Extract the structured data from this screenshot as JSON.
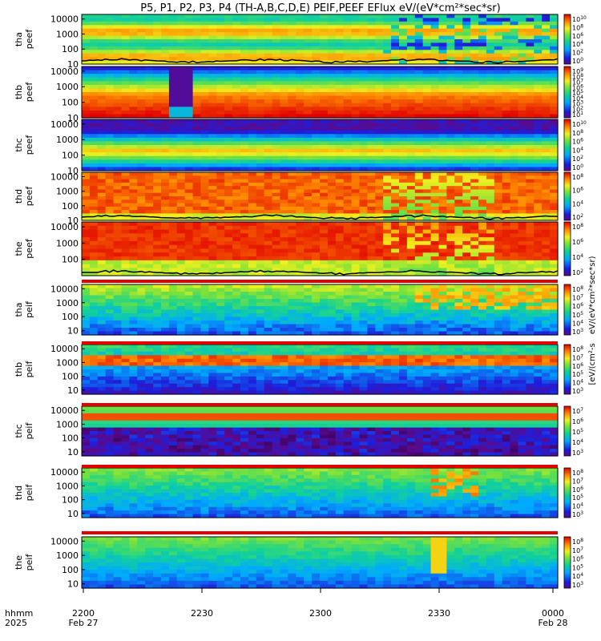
{
  "title": "P5, P1, P2, P3, P4 (TH-A,B,C,D,E) PEIF,PEEF EFlux eV/(eV*cm²*sec*sr)",
  "colorbar_units_top": "eV/(eV*cm²*sec*sr)",
  "colorbar_units_bottom": "[eV/(cm²-s",
  "time_axis": {
    "row1_label": "hhmm",
    "row2_label": "2025",
    "ticks": [
      "2200",
      "2230",
      "2300",
      "2330",
      "0000"
    ],
    "dates": [
      "Feb 27",
      "",
      "",
      "",
      "Feb 28"
    ]
  },
  "chart_data": [
    {
      "type": "heatmap",
      "probe": "tha",
      "product": "peef",
      "panel_label": [
        "tha",
        "peef"
      ],
      "xlim": [
        "22:00",
        "00:00"
      ],
      "ylim": [
        10,
        20000
      ],
      "yscale": "log",
      "yticks": [
        "10",
        "100",
        "1000",
        "10000"
      ],
      "colorbar_exponents": [
        10,
        8,
        6,
        4,
        2,
        0
      ],
      "pattern": "yellow-green mid energies, red bands near 1000 eV and 100 eV; many short spikes after 23:20",
      "has_overlay_line": true
    },
    {
      "type": "heatmap",
      "probe": "thb",
      "product": "peef",
      "panel_label": [
        "thb",
        "peef"
      ],
      "xlim": [
        "22:00",
        "00:00"
      ],
      "ylim": [
        10,
        20000
      ],
      "yscale": "log",
      "yticks": [
        "10",
        "100",
        "1000",
        "10000"
      ],
      "colorbar_exponents": [
        9,
        8,
        7,
        6,
        5,
        4,
        3,
        2,
        1
      ],
      "pattern": "red below 100 eV grading to blue above 1000 eV; data gap near 22:20",
      "has_overlay_line": false
    },
    {
      "type": "heatmap",
      "probe": "thc",
      "product": "peef",
      "panel_label": [
        "thc",
        "peef"
      ],
      "xlim": [
        "22:00",
        "00:00"
      ],
      "ylim": [
        10,
        20000
      ],
      "yscale": "log",
      "yticks": [
        "10",
        "100",
        "1000",
        "10000"
      ],
      "colorbar_exponents": [
        10,
        8,
        6,
        4,
        2,
        0
      ],
      "pattern": "green-yellow band near 100 eV, purple/black above",
      "has_overlay_line": false
    },
    {
      "type": "heatmap",
      "probe": "thd",
      "product": "peef",
      "panel_label": [
        "thd",
        "peef"
      ],
      "xlim": [
        "22:00",
        "00:00"
      ],
      "ylim": [
        10,
        20000
      ],
      "yscale": "log",
      "yticks": [
        "10",
        "100",
        "1000",
        "10000"
      ],
      "colorbar_exponents": [
        8,
        6,
        4,
        2
      ],
      "pattern": "red/orange across mid energies; vertical green dropouts 23:20-23:45",
      "has_overlay_line": true
    },
    {
      "type": "heatmap",
      "probe": "the",
      "product": "peef",
      "panel_label": [
        "the",
        "peef"
      ],
      "xlim": [
        "22:00",
        "00:00"
      ],
      "ylim": [
        10,
        20000
      ],
      "yscale": "log",
      "yticks": [
        "100",
        "1000",
        "10000"
      ],
      "colorbar_exponents": [
        8,
        6,
        4,
        2
      ],
      "pattern": "red dominant with green lower band; vertical dropouts 23:20-23:45",
      "has_overlay_line": true
    },
    {
      "type": "heatmap",
      "probe": "tha",
      "product": "peif",
      "panel_label": [
        "tha",
        "peif"
      ],
      "xlim": [
        "22:00",
        "00:00"
      ],
      "ylim": [
        5,
        20000
      ],
      "yscale": "log",
      "yticks": [
        "10",
        "100",
        "1000",
        "10000"
      ],
      "colorbar_exponents": [
        8,
        7,
        6,
        5,
        4,
        3
      ],
      "pattern": "green/cyan upper, blue/purple low energies; yellow-red enhancements after 23:25",
      "has_overlay_line": false
    },
    {
      "type": "heatmap",
      "probe": "thb",
      "product": "peif",
      "panel_label": [
        "thb",
        "peif"
      ],
      "xlim": [
        "22:00",
        "00:00"
      ],
      "ylim": [
        5,
        20000
      ],
      "yscale": "log",
      "yticks": [
        "10",
        "100",
        "1000",
        "10000"
      ],
      "colorbar_exponents": [
        8,
        7,
        6,
        5,
        4,
        3
      ],
      "pattern": "red-orange band near 2000 eV, blue/purple below",
      "has_overlay_line": false
    },
    {
      "type": "heatmap",
      "probe": "thc",
      "product": "peif",
      "panel_label": [
        "thc",
        "peif"
      ],
      "xlim": [
        "22:00",
        "00:00"
      ],
      "ylim": [
        5,
        20000
      ],
      "yscale": "log",
      "yticks": [
        "10",
        "100",
        "1000",
        "10000"
      ],
      "colorbar_exponents": [
        7,
        6,
        5,
        4,
        3
      ],
      "pattern": "red band near 3000 eV, blue/purple with black below",
      "has_overlay_line": false
    },
    {
      "type": "heatmap",
      "probe": "thd",
      "product": "peif",
      "panel_label": [
        "thd",
        "peif"
      ],
      "xlim": [
        "22:00",
        "00:00"
      ],
      "ylim": [
        5,
        20000
      ],
      "yscale": "log",
      "yticks": [
        "10",
        "100",
        "1000",
        "10000"
      ],
      "colorbar_exponents": [
        8,
        7,
        6,
        5,
        4,
        3
      ],
      "pattern": "green/cyan with blue low energies; yellow-red bursts 23:25-23:40",
      "has_overlay_line": false
    },
    {
      "type": "heatmap",
      "probe": "the",
      "product": "peif",
      "panel_label": [
        "the",
        "peif"
      ],
      "xlim": [
        "22:00",
        "00:00"
      ],
      "ylim": [
        5,
        20000
      ],
      "yscale": "log",
      "yticks": [
        "10",
        "100",
        "1000",
        "10000"
      ],
      "colorbar_exponents": [
        8,
        7,
        6,
        5,
        4,
        3
      ],
      "pattern": "green/cyan with blue low energies; yellow burst near 23:25",
      "has_overlay_line": false
    }
  ]
}
